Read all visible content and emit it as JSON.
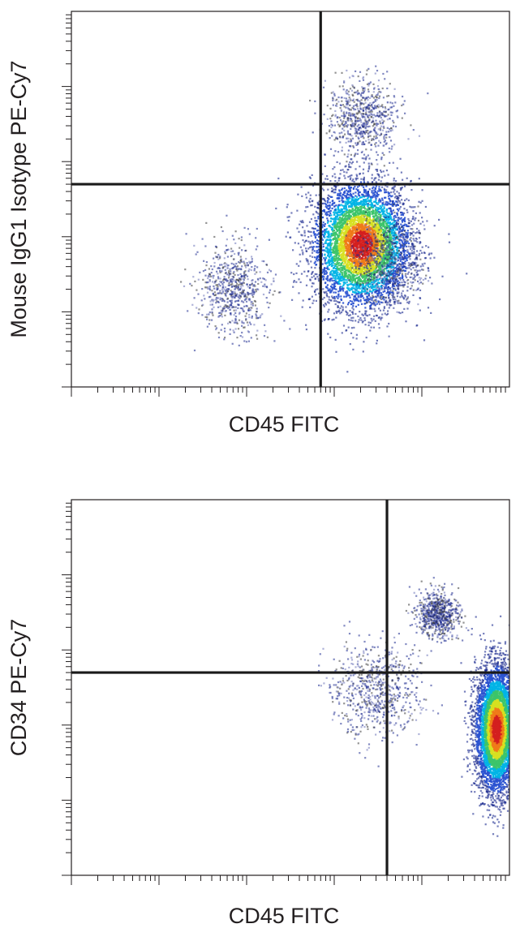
{
  "chart_data": [
    {
      "type": "scatter",
      "subtype": "flow-cytometry-density-plot",
      "xlabel": "CD45 FITC",
      "ylabel": "Mouse IgG1 Isotype PE-Cy7",
      "x_scale": "log",
      "y_scale": "log",
      "gates": {
        "x": 700,
        "y": 5000
      },
      "populations": [
        {
          "x_center": 2000,
          "y_center": 800,
          "x_spread": 0.28,
          "y_spread": 0.42,
          "density": "high"
        },
        {
          "x_center": 70,
          "y_center": 200,
          "x_spread": 0.2,
          "y_spread": 0.3,
          "density": "low"
        },
        {
          "x_center": 4000,
          "y_center": 500,
          "x_spread": 0.18,
          "y_spread": 0.3,
          "density": "low"
        },
        {
          "x_center": 2000,
          "y_center": 40000,
          "x_spread": 0.2,
          "y_spread": 0.25,
          "density": "low"
        }
      ],
      "colors": [
        "#1b2a8f",
        "#2a52d0",
        "#00b4e6",
        "#3cc46a",
        "#d6e020",
        "#f07a18",
        "#d41f1f"
      ]
    },
    {
      "type": "scatter",
      "subtype": "flow-cytometry-density-plot",
      "xlabel": "CD45 FITC",
      "ylabel": "CD34 PE-Cy7",
      "x_scale": "log",
      "y_scale": "log",
      "gates": {
        "x": 4000,
        "y": 5000
      },
      "populations": [
        {
          "x_center": 70000,
          "y_center": 900,
          "x_spread": 0.12,
          "y_spread": 0.42,
          "density": "high"
        },
        {
          "x_center": 15000,
          "y_center": 30000,
          "x_spread": 0.12,
          "y_spread": 0.15,
          "density": "low"
        },
        {
          "x_center": 3000,
          "y_center": 3000,
          "x_spread": 0.25,
          "y_spread": 0.3,
          "density": "low"
        }
      ],
      "colors": [
        "#1b2a8f",
        "#2a52d0",
        "#00b4e6",
        "#3cc46a",
        "#d6e020",
        "#f07a18",
        "#d41f1f"
      ]
    }
  ]
}
